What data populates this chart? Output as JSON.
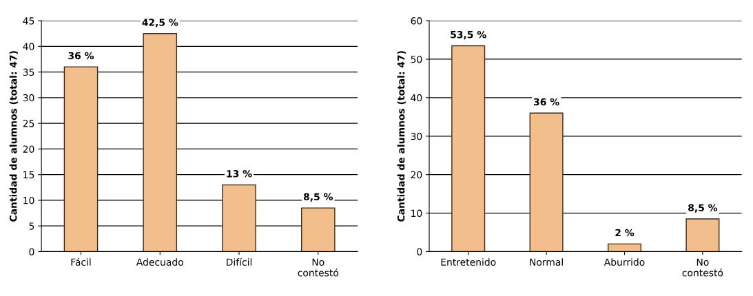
{
  "chart_data": [
    {
      "type": "bar",
      "ylabel": "Cantidad de alumnos (total: 47)",
      "categories": [
        "Fácil",
        "Adecuado",
        "Difícil",
        "No\ncontestó"
      ],
      "values": [
        36,
        42.5,
        13,
        8.5
      ],
      "color": "#f2bf8c",
      "value_labels": [
        "36 %",
        "42,5 %",
        "13 %",
        "8,5 %"
      ],
      "ylim": [
        0,
        45
      ],
      "yticks": [
        0,
        5,
        10,
        15,
        20,
        25,
        30,
        35,
        40,
        45
      ],
      "grid": "y"
    },
    {
      "type": "bar",
      "ylabel": "Cantidad de alumnos (total: 47)",
      "categories": [
        "Entretenido",
        "Normal",
        "Aburrido",
        "No\ncontestó"
      ],
      "values": [
        53.5,
        36,
        2,
        8.5
      ],
      "color": "#f2bf8c",
      "value_labels": [
        "53,5 %",
        "36 %",
        "2 %",
        "8,5 %"
      ],
      "ylim": [
        0,
        60
      ],
      "yticks": [
        0,
        10,
        20,
        30,
        40,
        50,
        60
      ],
      "grid": "y"
    }
  ]
}
